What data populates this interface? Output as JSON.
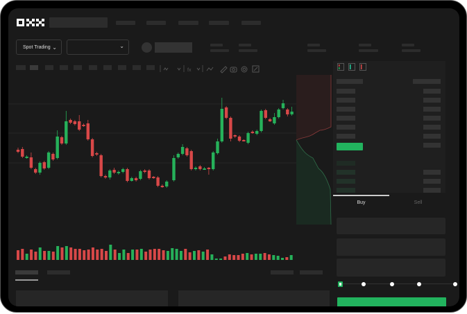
{
  "brand": {
    "logo": "OKX"
  },
  "toolbar": {
    "market_select": "Spot Trading"
  },
  "trade": {
    "buy_tab": "Buy",
    "sell_tab": "Sell",
    "leverage_steps": 5,
    "selected_step": 0
  },
  "colors": {
    "up": "#26b15a",
    "down": "#d84848",
    "background": "#1a1a1a",
    "accent": "#22b35e"
  },
  "icons": [
    "chevron-down-icon",
    "indicator-icon",
    "draw-icon",
    "camera-icon",
    "settings-icon",
    "fullscreen-icon",
    "orderbook-both-icon",
    "orderbook-bids-icon",
    "orderbook-asks-icon"
  ],
  "chart_data": {
    "type": "candlestick",
    "candles": [
      [
        96,
        93,
        99,
        91
      ],
      [
        97,
        86,
        100,
        84
      ],
      [
        85,
        86,
        88,
        83
      ],
      [
        85,
        70,
        92,
        68
      ],
      [
        68,
        63,
        70,
        61
      ],
      [
        63,
        77,
        79,
        60
      ],
      [
        78,
        69,
        80,
        67
      ],
      [
        70,
        92,
        94,
        68
      ],
      [
        90,
        82,
        92,
        80
      ],
      [
        84,
        115,
        124,
        82
      ],
      [
        114,
        105,
        116,
        103
      ],
      [
        105,
        137,
        152,
        103
      ],
      [
        139,
        135,
        141,
        133
      ],
      [
        137,
        133,
        139,
        131
      ],
      [
        137,
        125,
        146,
        123
      ],
      [
        132,
        131,
        134,
        129
      ],
      [
        134,
        111,
        139,
        109
      ],
      [
        111,
        87,
        113,
        85
      ],
      [
        91,
        89,
        93,
        87
      ],
      [
        88,
        58,
        90,
        56
      ],
      [
        58,
        56,
        60,
        54
      ],
      [
        56,
        66,
        68,
        53
      ],
      [
        67,
        63,
        70,
        61
      ],
      [
        62,
        64,
        66,
        60
      ],
      [
        64,
        68,
        70,
        62
      ],
      [
        68,
        51,
        70,
        49
      ],
      [
        51,
        55,
        57,
        50
      ],
      [
        55,
        52,
        57,
        50
      ],
      [
        54,
        65,
        67,
        52
      ],
      [
        66,
        64,
        68,
        62
      ],
      [
        66,
        55,
        68,
        53
      ],
      [
        57,
        55,
        58,
        54
      ],
      [
        56,
        44,
        58,
        42
      ],
      [
        44,
        42,
        46,
        41
      ],
      [
        43,
        50,
        52,
        41
      ],
      [
        52,
        84,
        88,
        50
      ],
      [
        85,
        90,
        92,
        83
      ],
      [
        90,
        100,
        104,
        88
      ],
      [
        98,
        88,
        100,
        86
      ],
      [
        94,
        68,
        96,
        66
      ],
      [
        68,
        70,
        72,
        66
      ],
      [
        72,
        68,
        74,
        66
      ],
      [
        68,
        69,
        71,
        67
      ],
      [
        70,
        68,
        71,
        60
      ],
      [
        68,
        92,
        94,
        66
      ],
      [
        91,
        108,
        112,
        89
      ],
      [
        108,
        155,
        171,
        106
      ],
      [
        157,
        142,
        159,
        140
      ],
      [
        142,
        112,
        144,
        108
      ],
      [
        117,
        115,
        118,
        113
      ],
      [
        115,
        109,
        117,
        107
      ],
      [
        110,
        109,
        111,
        108
      ],
      [
        106,
        120,
        122,
        104
      ],
      [
        122,
        120,
        124,
        119
      ],
      [
        119,
        123,
        125,
        117
      ],
      [
        123,
        152,
        154,
        121
      ],
      [
        153,
        142,
        155,
        140
      ],
      [
        140,
        137,
        142,
        136
      ],
      [
        134,
        143,
        149,
        132
      ],
      [
        143,
        154,
        156,
        141
      ],
      [
        156,
        163,
        168,
        154
      ],
      [
        154,
        147,
        156,
        144
      ],
      [
        147,
        151,
        158,
        145
      ]
    ],
    "volume": [
      14,
      16,
      9,
      15,
      12,
      18,
      13,
      13,
      12,
      20,
      18,
      20,
      18,
      16,
      16,
      14,
      15,
      18,
      15,
      16,
      13,
      22,
      15,
      10,
      15,
      10,
      15,
      15,
      16,
      12,
      15,
      16,
      16,
      14,
      13,
      17,
      16,
      13,
      16,
      11,
      13,
      14,
      12,
      15,
      8,
      2,
      2,
      5,
      8,
      7,
      7,
      9,
      10,
      8,
      9,
      9,
      10,
      8,
      7,
      6,
      3,
      4,
      7
    ]
  }
}
